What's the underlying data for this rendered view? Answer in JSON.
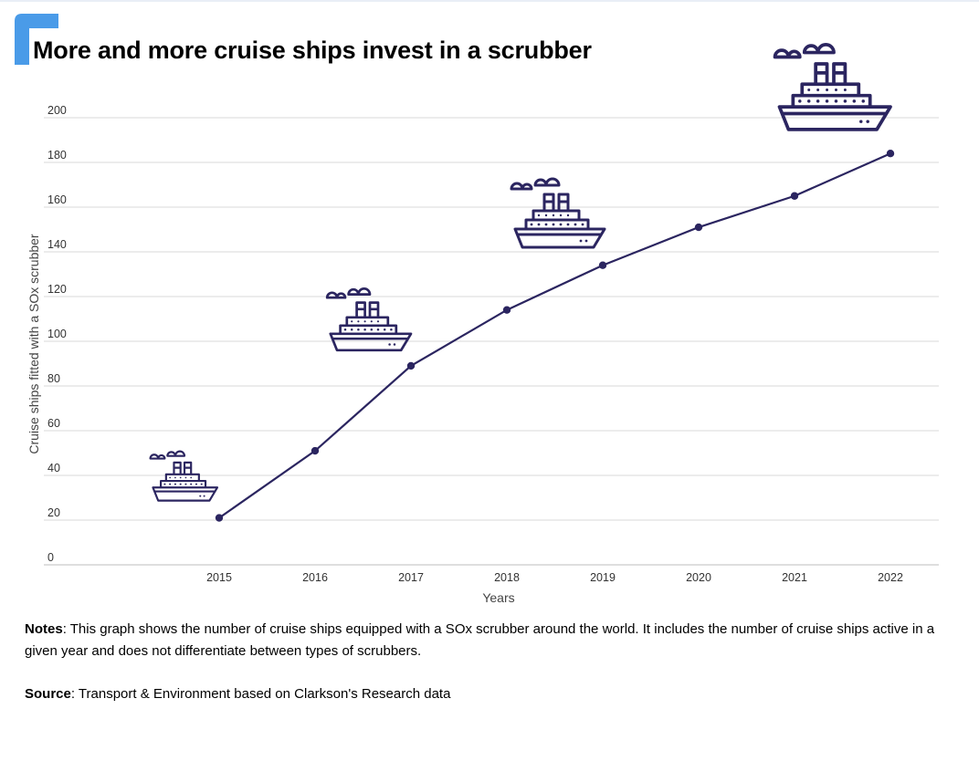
{
  "title": "More and more cruise ships invest in a scrubber",
  "notes": {
    "label": "Notes",
    "text": ": This graph shows the number of cruise ships equipped with a SOx scrubber around the world. It includes the number of cruise ships active in a given year and does not differentiate between types of scrubbers."
  },
  "source": {
    "label": "Source",
    "text": ": Transport & Environment based on Clarkson's Research data"
  },
  "colors": {
    "line": "#2b2560",
    "accent": "#4a9be8",
    "grid": "#d9d9d9",
    "ship": "#2b2560"
  },
  "chart_data": {
    "type": "line",
    "xlabel": "Years",
    "ylabel": "Cruise ships fitted with a SOx scrubber",
    "x": [
      "2015",
      "2016",
      "2017",
      "2018",
      "2019",
      "2020",
      "2021",
      "2022"
    ],
    "series": [
      {
        "values": [
          21,
          51,
          89,
          114,
          134,
          151,
          165,
          184
        ]
      }
    ],
    "y_ticks": [
      0,
      20,
      40,
      60,
      80,
      100,
      120,
      140,
      160,
      180,
      200
    ],
    "ylim": [
      0,
      200
    ],
    "grid": "horizontal",
    "markers": true,
    "decorations": [
      "cruise-ship-icon",
      "cruise-ship-icon",
      "cruise-ship-icon",
      "cruise-ship-icon"
    ]
  }
}
